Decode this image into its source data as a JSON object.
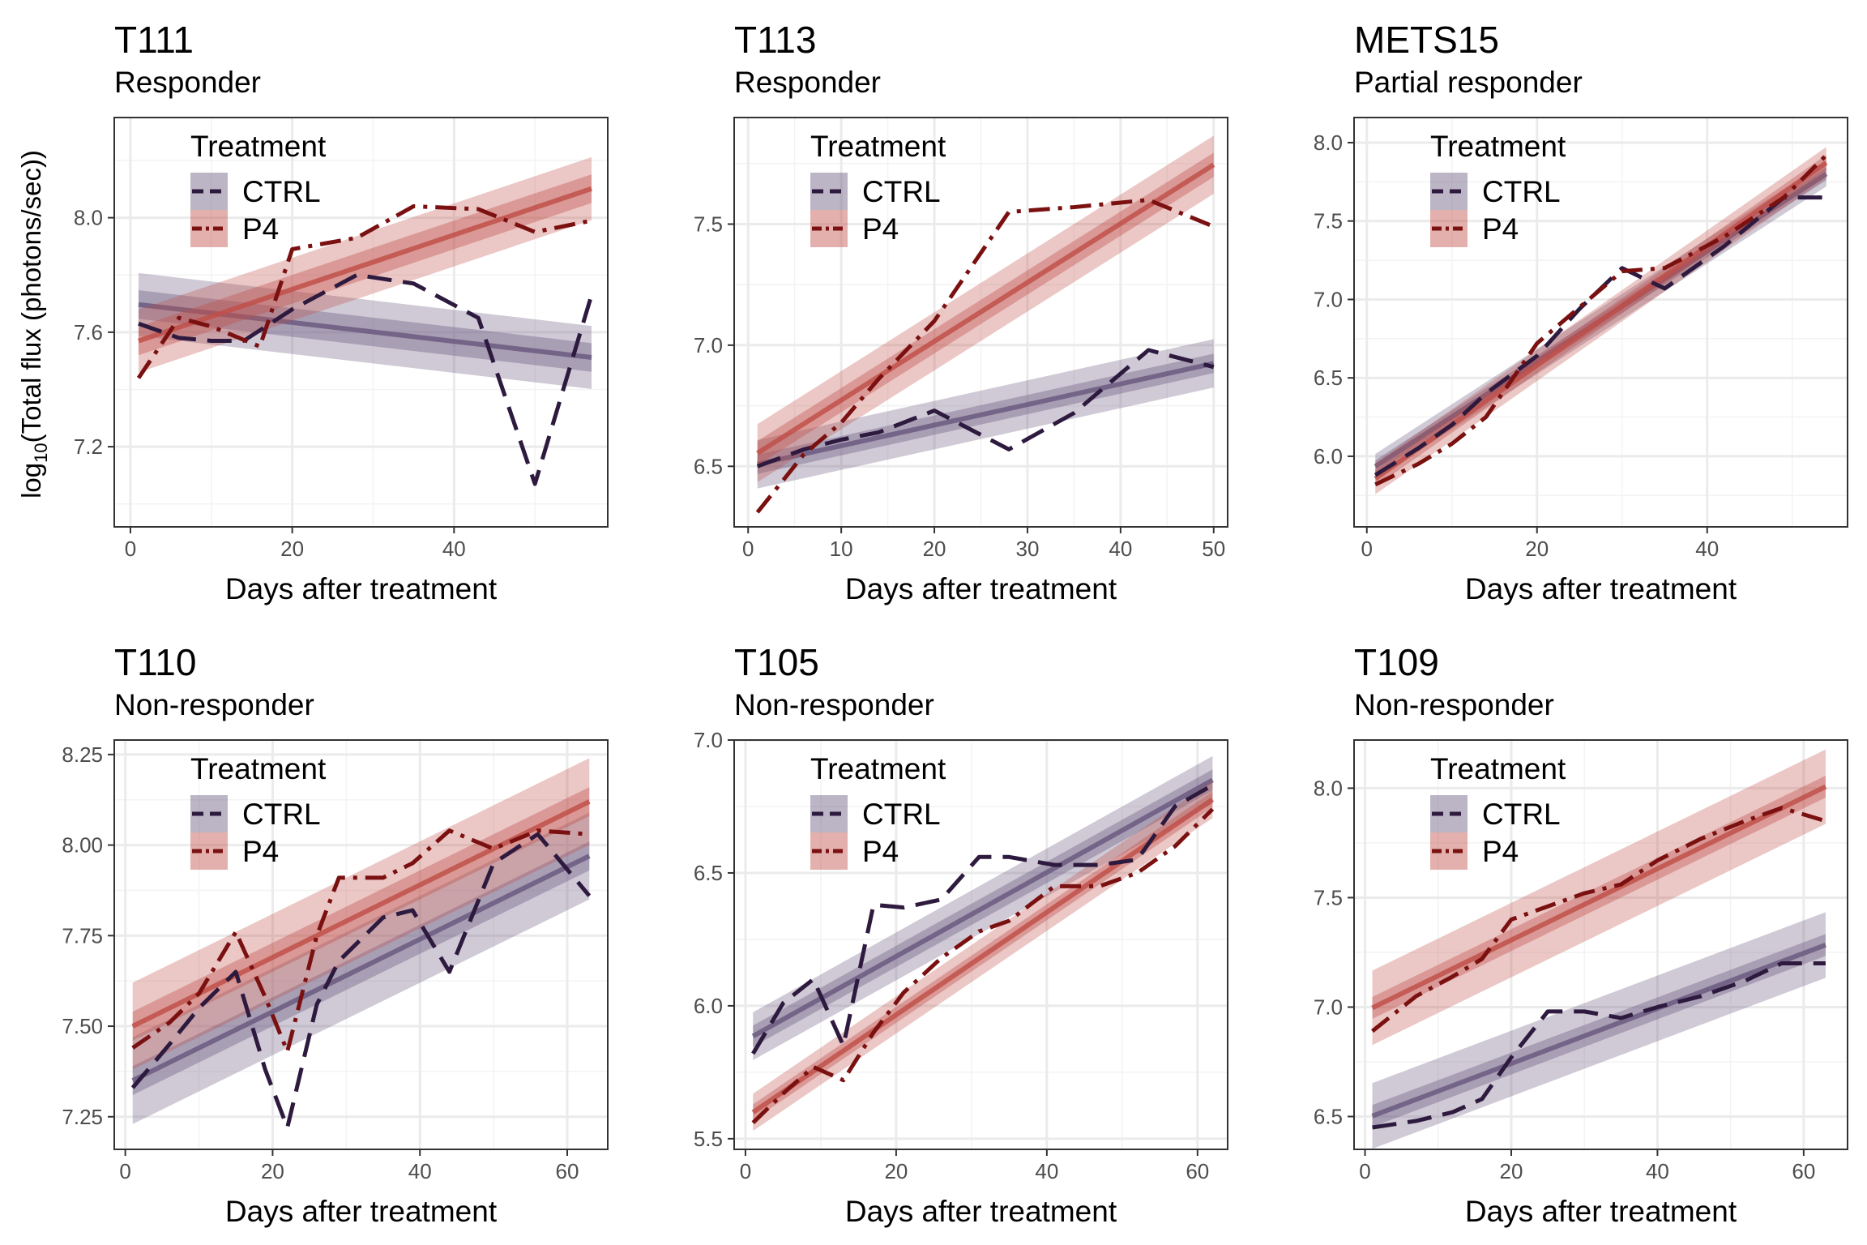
{
  "figure": {
    "ylabel_prefix": "log",
    "ylabel_sub": "10",
    "ylabel_suffix": "(Total flux (photons/sec))"
  },
  "colors": {
    "CTRL": "#2d1a3e",
    "P4": "#7a1010",
    "CTRL_band": "#6b5a80",
    "P4_band": "#c0504a",
    "grid": "#ebebeb"
  },
  "chart_data": [
    {
      "type": "line",
      "title": "T111",
      "subtitle": "Responder",
      "xlabel": "Days after treatment",
      "xlim": [
        -2,
        59
      ],
      "ylim": [
        6.92,
        8.35
      ],
      "xticks": [
        "0",
        "20",
        "40"
      ],
      "xtick_values": [
        0,
        20,
        40
      ],
      "yticks": [
        "7.2",
        "7.6",
        "8.0"
      ],
      "ytick_values": [
        7.2,
        7.6,
        8.0
      ],
      "legend_title": "Treatment",
      "legend_labels": [
        "CTRL",
        "P4"
      ],
      "series": [
        {
          "name": "CTRL",
          "x": [
            1,
            6,
            10,
            14,
            20,
            28,
            35,
            43,
            50,
            57
          ],
          "y": [
            7.63,
            7.58,
            7.57,
            7.57,
            7.68,
            7.8,
            7.77,
            7.65,
            7.07,
            7.73
          ],
          "fit": {
            "intercept": 7.7,
            "slope": -0.0033,
            "inner": 0.05,
            "outer": 0.11
          }
        },
        {
          "name": "P4",
          "x": [
            1,
            6,
            10,
            16,
            20,
            28,
            35,
            43,
            50,
            57
          ],
          "y": [
            7.44,
            7.65,
            7.62,
            7.55,
            7.89,
            7.93,
            8.04,
            8.03,
            7.95,
            7.99
          ],
          "fit": {
            "intercept": 7.56,
            "slope": 0.0095,
            "inner": 0.05,
            "outer": 0.11
          }
        }
      ]
    },
    {
      "type": "line",
      "title": "T113",
      "subtitle": "Responder",
      "xlabel": "Days after treatment",
      "xlim": [
        -1.5,
        51.5
      ],
      "ylim": [
        6.25,
        7.94
      ],
      "xticks": [
        "0",
        "10",
        "20",
        "30",
        "40",
        "50"
      ],
      "xtick_values": [
        0,
        10,
        20,
        30,
        40,
        50
      ],
      "yticks": [
        "6.5",
        "7.0",
        "7.5"
      ],
      "ytick_values": [
        6.5,
        7.0,
        7.5
      ],
      "legend_title": "Treatment",
      "legend_labels": [
        "CTRL",
        "P4"
      ],
      "series": [
        {
          "name": "CTRL",
          "x": [
            1,
            6,
            10,
            14,
            20,
            28,
            35,
            43,
            50
          ],
          "y": [
            6.5,
            6.57,
            6.61,
            6.64,
            6.73,
            6.57,
            6.72,
            6.98,
            6.91
          ],
          "fit": {
            "intercept": 6.5,
            "slope": 0.0085,
            "inner": 0.04,
            "outer": 0.1
          }
        },
        {
          "name": "P4",
          "x": [
            1,
            6,
            10,
            14,
            20,
            28,
            35,
            43,
            50
          ],
          "y": [
            6.31,
            6.55,
            6.68,
            6.86,
            7.1,
            7.55,
            7.57,
            7.6,
            7.49
          ],
          "fit": {
            "intercept": 6.53,
            "slope": 0.0243,
            "inner": 0.05,
            "outer": 0.12
          }
        }
      ]
    },
    {
      "type": "line",
      "title": "METS15",
      "subtitle": "Partial responder",
      "xlabel": "Days after treatment",
      "xlim": [
        -1.5,
        56.5
      ],
      "ylim": [
        5.55,
        8.16
      ],
      "xticks": [
        "0",
        "20",
        "40"
      ],
      "xtick_values": [
        0,
        20,
        40
      ],
      "yticks": [
        "6.0",
        "6.5",
        "7.0",
        "7.5",
        "8.0"
      ],
      "ytick_values": [
        6.0,
        6.5,
        7.0,
        7.5,
        8.0
      ],
      "legend_title": "Treatment",
      "legend_labels": [
        "CTRL",
        "P4"
      ],
      "series": [
        {
          "name": "CTRL",
          "x": [
            1,
            6,
            10,
            14,
            20,
            25,
            30,
            35,
            42,
            49,
            54
          ],
          "y": [
            5.88,
            6.05,
            6.2,
            6.4,
            6.64,
            6.94,
            7.2,
            7.07,
            7.34,
            7.65,
            7.65
          ],
          "fit": {
            "intercept": 5.9,
            "slope": 0.0352,
            "inner": 0.04,
            "outer": 0.08
          }
        },
        {
          "name": "P4",
          "x": [
            1,
            6,
            10,
            14,
            20,
            25,
            30,
            35,
            42,
            49,
            54
          ],
          "y": [
            5.82,
            5.95,
            6.08,
            6.25,
            6.72,
            6.95,
            7.18,
            7.2,
            7.4,
            7.65,
            7.92
          ],
          "fit": {
            "intercept": 5.82,
            "slope": 0.038,
            "inner": 0.05,
            "outer": 0.1
          }
        }
      ]
    },
    {
      "type": "line",
      "title": "T110",
      "subtitle": "Non-responder",
      "xlabel": "Days after treatment",
      "xlim": [
        -1.5,
        65.5
      ],
      "ylim": [
        7.16,
        8.29
      ],
      "xticks": [
        "0",
        "20",
        "40",
        "60"
      ],
      "xtick_values": [
        0,
        20,
        40,
        60
      ],
      "yticks": [
        "7.25",
        "7.50",
        "7.75",
        "8.00",
        "8.25"
      ],
      "ytick_values": [
        7.25,
        7.5,
        7.75,
        8.0,
        8.25
      ],
      "legend_title": "Treatment",
      "legend_labels": [
        "CTRL",
        "P4"
      ],
      "series": [
        {
          "name": "CTRL",
          "x": [
            1,
            6,
            10,
            15,
            19,
            22,
            26,
            29,
            35,
            39,
            44,
            50,
            56,
            63
          ],
          "y": [
            7.33,
            7.45,
            7.55,
            7.65,
            7.38,
            7.22,
            7.56,
            7.68,
            7.8,
            7.82,
            7.65,
            7.95,
            8.03,
            7.86
          ],
          "fit": {
            "intercept": 7.34,
            "slope": 0.01,
            "inner": 0.04,
            "outer": 0.12
          }
        },
        {
          "name": "P4",
          "x": [
            1,
            6,
            10,
            15,
            19,
            22,
            26,
            29,
            35,
            39,
            44,
            50,
            56,
            63
          ],
          "y": [
            7.44,
            7.51,
            7.59,
            7.76,
            7.58,
            7.43,
            7.75,
            7.91,
            7.91,
            7.95,
            8.04,
            7.99,
            8.04,
            8.03
          ],
          "fit": {
            "intercept": 7.49,
            "slope": 0.01,
            "inner": 0.04,
            "outer": 0.12
          }
        }
      ]
    },
    {
      "type": "line",
      "title": "T105",
      "subtitle": "Non-responder",
      "xlabel": "Days after treatment",
      "xlim": [
        -1.5,
        64
      ],
      "ylim": [
        5.46,
        7.0
      ],
      "xticks": [
        "0",
        "20",
        "40",
        "60"
      ],
      "xtick_values": [
        0,
        20,
        40,
        60
      ],
      "yticks": [
        "5.5",
        "6.0",
        "6.5",
        "7.0"
      ],
      "ytick_values": [
        5.5,
        6.0,
        6.5,
        7.0
      ],
      "legend_title": "Treatment",
      "legend_labels": [
        "CTRL",
        "P4"
      ],
      "series": [
        {
          "name": "CTRL",
          "x": [
            1,
            5,
            9,
            13,
            17,
            21,
            26,
            31,
            35,
            41,
            47,
            52,
            57,
            62
          ],
          "y": [
            5.82,
            6.01,
            6.1,
            5.85,
            6.38,
            6.37,
            6.4,
            6.56,
            6.56,
            6.53,
            6.53,
            6.55,
            6.75,
            6.83
          ],
          "fit": {
            "intercept": 5.87,
            "slope": 0.0158,
            "inner": 0.04,
            "outer": 0.09
          }
        },
        {
          "name": "P4",
          "x": [
            1,
            5,
            9,
            13,
            17,
            21,
            26,
            31,
            35,
            41,
            47,
            52,
            57,
            62
          ],
          "y": [
            5.56,
            5.67,
            5.77,
            5.72,
            5.9,
            6.05,
            6.18,
            6.28,
            6.32,
            6.45,
            6.45,
            6.5,
            6.6,
            6.74
          ],
          "fit": {
            "intercept": 5.58,
            "slope": 0.0193,
            "inner": 0.03,
            "outer": 0.07
          }
        }
      ]
    },
    {
      "type": "line",
      "title": "T109",
      "subtitle": "Non-responder",
      "xlabel": "Days after treatment",
      "xlim": [
        -1.5,
        66
      ],
      "ylim": [
        6.35,
        8.22
      ],
      "xticks": [
        "0",
        "20",
        "40",
        "60"
      ],
      "xtick_values": [
        0,
        20,
        40,
        60
      ],
      "yticks": [
        "6.5",
        "7.0",
        "7.5",
        "8.0"
      ],
      "ytick_values": [
        6.5,
        7.0,
        7.5,
        8.0
      ],
      "legend_title": "Treatment",
      "legend_labels": [
        "CTRL",
        "P4"
      ],
      "series": [
        {
          "name": "CTRL",
          "x": [
            1,
            7,
            12,
            16,
            20,
            25,
            30,
            35,
            40,
            46,
            52,
            57,
            63
          ],
          "y": [
            6.45,
            6.48,
            6.52,
            6.58,
            6.77,
            6.98,
            6.98,
            6.95,
            7.0,
            7.05,
            7.12,
            7.2,
            7.2
          ],
          "fit": {
            "intercept": 6.49,
            "slope": 0.0126,
            "inner": 0.05,
            "outer": 0.15
          }
        },
        {
          "name": "P4",
          "x": [
            1,
            7,
            12,
            16,
            20,
            25,
            30,
            35,
            40,
            46,
            52,
            57,
            63
          ],
          "y": [
            6.89,
            7.05,
            7.14,
            7.22,
            7.4,
            7.46,
            7.52,
            7.56,
            7.67,
            7.77,
            7.85,
            7.91,
            7.85
          ],
          "fit": {
            "intercept": 6.98,
            "slope": 0.0163,
            "inner": 0.05,
            "outer": 0.17
          }
        }
      ]
    }
  ]
}
